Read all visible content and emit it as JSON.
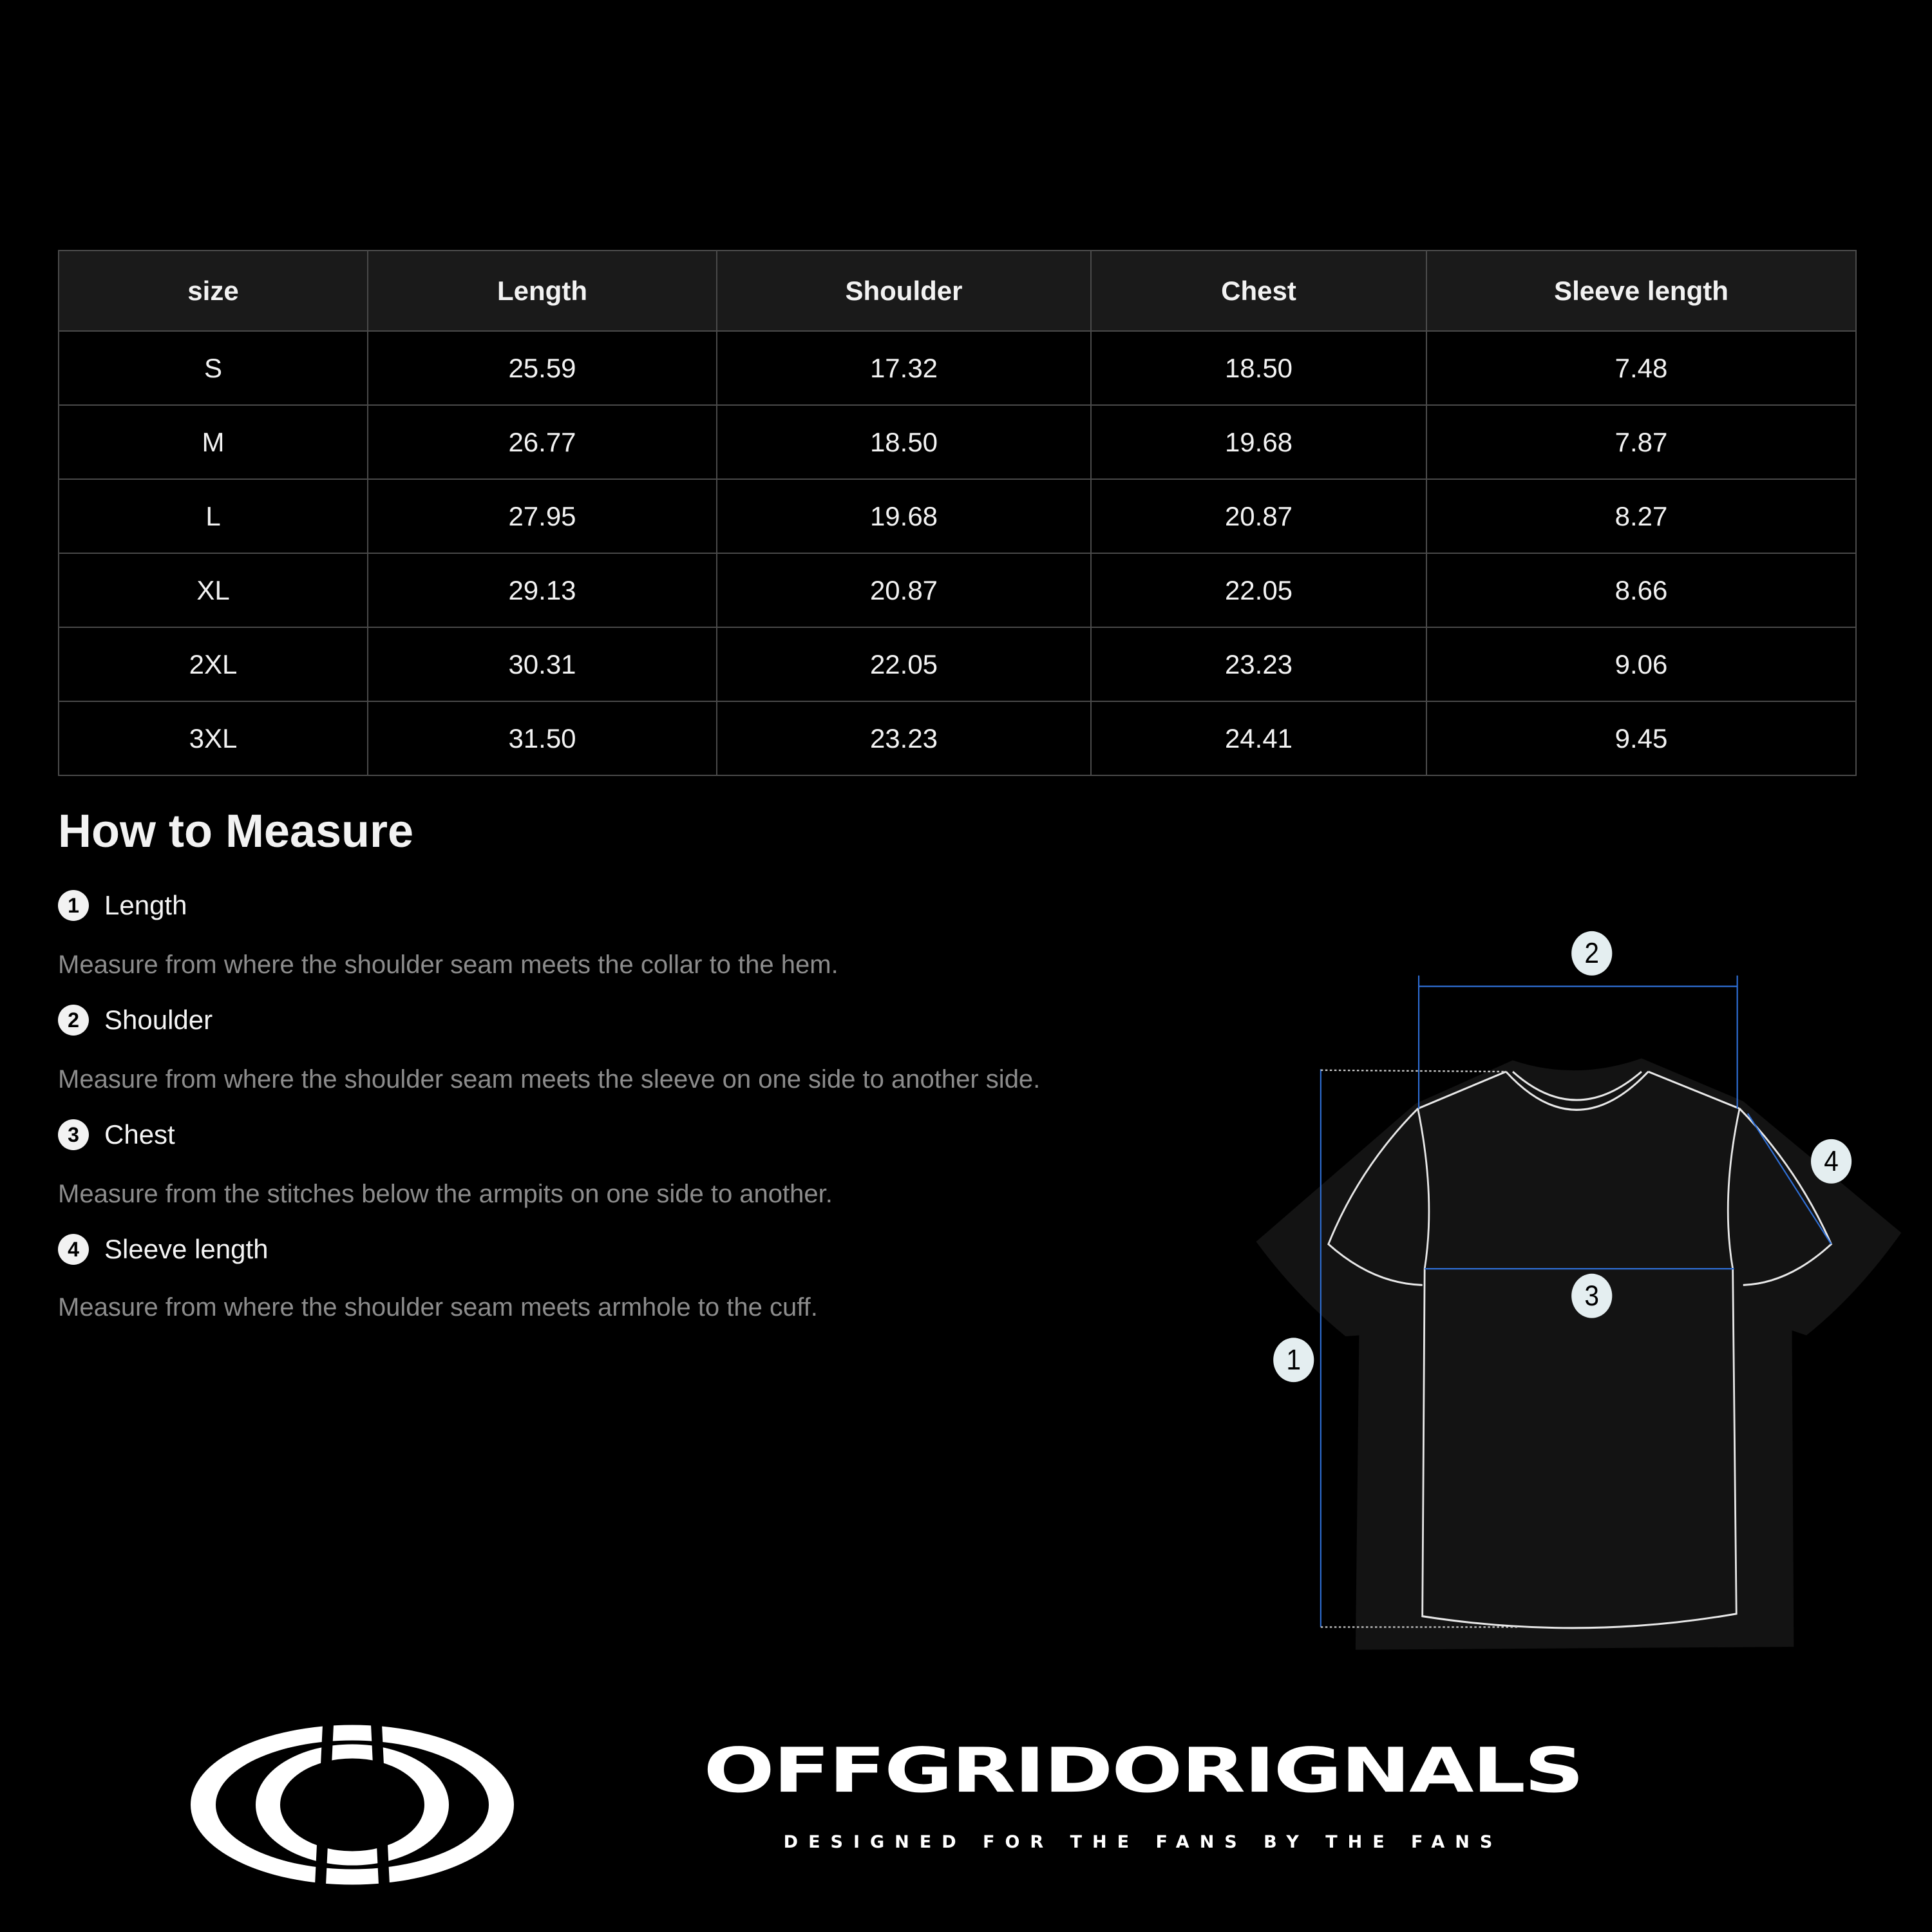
{
  "size_table": {
    "headers": [
      "size",
      "Length",
      "Shoulder",
      "Chest",
      "Sleeve length"
    ],
    "rows": [
      [
        "S",
        "25.59",
        "17.32",
        "18.50",
        "7.48"
      ],
      [
        "M",
        "26.77",
        "18.50",
        "19.68",
        "7.87"
      ],
      [
        "L",
        "27.95",
        "19.68",
        "20.87",
        "8.27"
      ],
      [
        "XL",
        "29.13",
        "20.87",
        "22.05",
        "8.66"
      ],
      [
        "2XL",
        "30.31",
        "22.05",
        "23.23",
        "9.06"
      ],
      [
        "3XL",
        "31.50",
        "23.23",
        "24.41",
        "9.45"
      ]
    ]
  },
  "how_to_measure": {
    "title": "How to Measure",
    "steps": [
      {
        "num": "1",
        "label": "Length",
        "desc": "Measure from where the shoulder seam meets the collar to the hem."
      },
      {
        "num": "2",
        "label": "Shoulder",
        "desc": "Measure from where the shoulder seam meets the sleeve on one side to another side."
      },
      {
        "num": "3",
        "label": "Chest",
        "desc": "Measure from the stitches below the armpits on one side to another."
      },
      {
        "num": "4",
        "label": "Sleeve length",
        "desc": "Measure from where the shoulder seam meets armhole to the cuff."
      }
    ]
  },
  "diagram": {
    "markers": [
      "1",
      "2",
      "3",
      "4"
    ],
    "line_color": "#2f6fd6",
    "outline_color": "#e8e8e8"
  },
  "brand": {
    "name": "OFFGRIDORIGNALS",
    "tagline": "DESIGNED FOR THE FANS BY THE FANS"
  }
}
